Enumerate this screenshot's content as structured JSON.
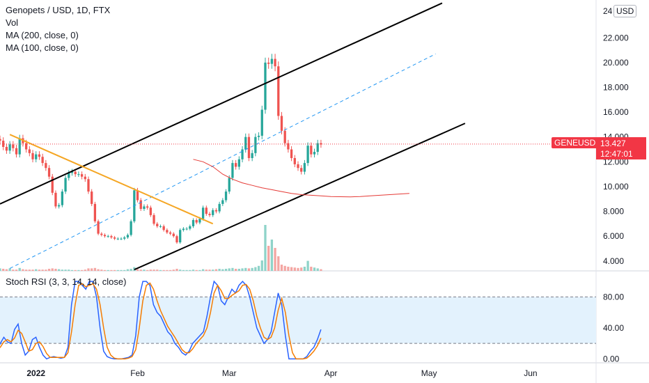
{
  "legend": {
    "symbol": "Genopets / USD, 1D, FTX",
    "vol": "Vol",
    "ma200": "MA (200, close, 0)",
    "ma100": "MA (100, close, 0)"
  },
  "rsi_legend": "Stoch RSI (3, 3, 14, 14, close)",
  "currency_badge": "USD",
  "price_tag": {
    "ticker": "GENEUSD",
    "value": "13.427",
    "timer": "12:47:01"
  },
  "price_axis_top_partial": "24",
  "colors": {
    "up": "#26a69a",
    "down": "#ef5350",
    "vol_up": "#8fd3c9",
    "vol_down": "#f4a6a3",
    "channel": "#000000",
    "trend": "#f5a623",
    "mid": "#2196f3",
    "ma": "#e53935",
    "k": "#2962ff",
    "d": "#f57c00",
    "rsi_band": "#e3f2fd"
  },
  "chart_data": [
    {
      "type": "candlestick",
      "title": "Genopets / USD, 1D, FTX",
      "y_ticks": [
        "4.000",
        "6.000",
        "8.000",
        "10.000",
        "12.000",
        "14.000",
        "16.000",
        "18.000",
        "20.000",
        "22.000"
      ],
      "ylim": [
        3.2,
        24.6
      ],
      "x_ticks": [
        "2022",
        "Feb",
        "Mar",
        "Apr",
        "May",
        "Jun"
      ],
      "x_tick_days": [
        0,
        31,
        59,
        90,
        120,
        151
      ],
      "xlim_days": [
        -11,
        171
      ],
      "last_price": 13.427,
      "candles_close": [
        13.7,
        13.2,
        12.9,
        13.4,
        13.1,
        12.6,
        13.9,
        13.5,
        13.0,
        12.7,
        12.2,
        12.6,
        12.4,
        11.9,
        11.5,
        10.8,
        9.5,
        8.4,
        8.5,
        9.6,
        10.7,
        11.1,
        11.2,
        11.0,
        11.0,
        10.8,
        10.6,
        9.6,
        8.6,
        7.2,
        6.2,
        6.1,
        6.0,
        6.0,
        5.9,
        5.8,
        5.8,
        5.8,
        5.9,
        6.1,
        7.2,
        9.7,
        8.9,
        8.2,
        8.4,
        8.3,
        7.7,
        7.0,
        6.8,
        6.8,
        6.5,
        6.3,
        6.2,
        6.0,
        5.5,
        6.5,
        6.6,
        6.6,
        6.8,
        7.3,
        7.1,
        7.4,
        8.3,
        7.8,
        7.7,
        8.1,
        8.0,
        8.6,
        8.9,
        9.6,
        10.7,
        11.9,
        11.6,
        12.2,
        13.0,
        14.0,
        12.3,
        12.7,
        14.0,
        14.1,
        16.2,
        20.0,
        19.9,
        20.3,
        19.7,
        15.7,
        14.5,
        13.5,
        13.0,
        12.3,
        11.8,
        11.5,
        11.2,
        11.9,
        13.3,
        12.6,
        12.8,
        13.5,
        13.4
      ],
      "candles_first_day": -11,
      "volume_relative": [
        0.6,
        0.5,
        0.4,
        0.6,
        0.3,
        0.3,
        0.7,
        0.4,
        0.3,
        0.3,
        0.3,
        0.4,
        0.3,
        0.3,
        0.3,
        0.5,
        0.6,
        0.5,
        0.4,
        0.3,
        0.3,
        0.3,
        0.2,
        0.2,
        0.2,
        0.2,
        0.3,
        0.6,
        0.6,
        0.7,
        0.4,
        0.3,
        0.2,
        0.2,
        0.2,
        0.2,
        0.2,
        0.2,
        0.2,
        0.4,
        0.5,
        0.9,
        0.4,
        0.3,
        0.3,
        0.2,
        0.3,
        0.3,
        0.3,
        0.2,
        0.2,
        0.2,
        0.2,
        0.3,
        0.5,
        0.3,
        0.2,
        0.2,
        0.2,
        0.3,
        0.2,
        0.2,
        0.4,
        0.3,
        0.3,
        0.3,
        0.4,
        0.5,
        0.4,
        0.5,
        0.6,
        0.7,
        0.5,
        0.5,
        0.6,
        0.7,
        0.6,
        0.7,
        0.9,
        1.2,
        2.5,
        11.0,
        6.0,
        7.5,
        5.5,
        3.5,
        1.5,
        1.2,
        1.0,
        0.9,
        0.8,
        0.7,
        0.8,
        1.0,
        2.4,
        1.0,
        0.8,
        0.6,
        0.4
      ],
      "ma_series": {
        "start_day": 48,
        "values": [
          12.2,
          12.0,
          11.6,
          11.0,
          10.6,
          10.3,
          10.1,
          9.9,
          9.75,
          9.6,
          9.45,
          9.35,
          9.3,
          9.25,
          9.2,
          9.18,
          9.17,
          9.2,
          9.25,
          9.3,
          9.35,
          9.4,
          9.45
        ]
      },
      "drawings": [
        "upper channel line",
        "lower channel line",
        "dashed mid line",
        "orange descending trendline"
      ]
    },
    {
      "type": "line",
      "title": "Stoch RSI (3, 3, 14, 14, close)",
      "y_ticks": [
        "0.00",
        "40.00",
        "80.00"
      ],
      "ylim": [
        -5,
        110
      ],
      "bands": [
        20,
        80
      ],
      "series": [
        {
          "name": "K",
          "values": [
            10,
            20,
            28,
            22,
            20,
            38,
            45,
            20,
            5,
            10,
            25,
            28,
            15,
            5,
            0,
            2,
            3,
            2,
            1,
            2,
            15,
            70,
            100,
            100,
            95,
            90,
            100,
            100,
            80,
            40,
            10,
            3,
            1,
            0,
            0,
            0,
            1,
            2,
            5,
            30,
            80,
            100,
            100,
            95,
            70,
            60,
            55,
            45,
            35,
            30,
            20,
            15,
            8,
            5,
            10,
            20,
            25,
            30,
            35,
            55,
            80,
            100,
            95,
            75,
            70,
            80,
            90,
            85,
            95,
            100,
            95,
            80,
            60,
            40,
            30,
            20,
            25,
            35,
            60,
            85,
            70,
            30,
            0,
            0,
            0,
            0,
            0,
            3,
            10,
            15,
            25,
            38
          ]
        },
        {
          "name": "D",
          "values": [
            12,
            15,
            22,
            25,
            22,
            27,
            37,
            33,
            22,
            10,
            12,
            20,
            22,
            16,
            7,
            2,
            2,
            2,
            2,
            2,
            8,
            35,
            70,
            95,
            97,
            93,
            95,
            97,
            90,
            70,
            40,
            15,
            5,
            1,
            0,
            0,
            0,
            1,
            3,
            12,
            40,
            75,
            95,
            98,
            90,
            75,
            62,
            52,
            42,
            35,
            28,
            20,
            12,
            8,
            8,
            13,
            20,
            25,
            30,
            40,
            60,
            85,
            95,
            88,
            78,
            78,
            82,
            85,
            88,
            95,
            96,
            90,
            75,
            55,
            40,
            28,
            25,
            28,
            40,
            63,
            78,
            60,
            30,
            8,
            0,
            0,
            0,
            1,
            5,
            10,
            17,
            27
          ]
        }
      ]
    }
  ]
}
